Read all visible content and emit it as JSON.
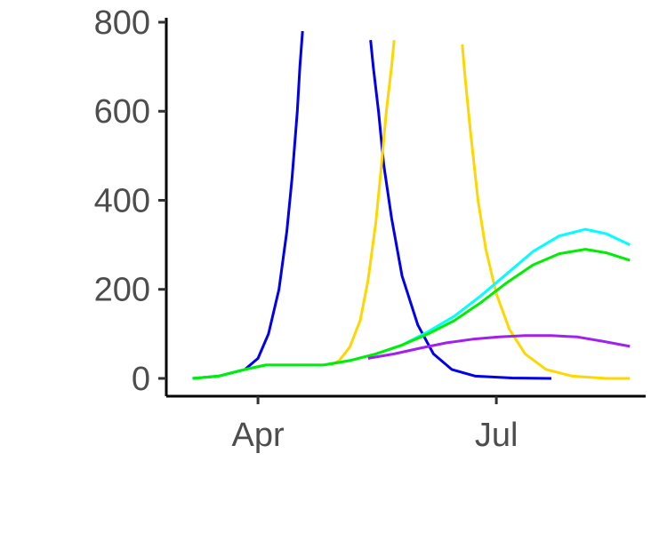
{
  "chart_data": {
    "type": "line",
    "title": "",
    "xlabel": "",
    "ylabel": "",
    "x_axis": {
      "type": "date",
      "range": [
        "2020-02-26",
        "2020-08-27"
      ],
      "ticks": [
        {
          "date": "2020-04-01",
          "label": "Apr"
        },
        {
          "date": "2020-07-01",
          "label": "Jul"
        }
      ]
    },
    "y_axis": {
      "range": [
        -40,
        810
      ],
      "ticks": [
        0,
        200,
        400,
        600,
        800
      ]
    },
    "grid": false,
    "legend": "none",
    "series": [
      {
        "color": "#0000ee",
        "points": [
          [
            "2020-03-07",
            0
          ],
          [
            "2020-03-17",
            5
          ],
          [
            "2020-03-27",
            20
          ],
          [
            "2020-04-01",
            45
          ],
          [
            "2020-04-05",
            100
          ],
          [
            "2020-04-09",
            200
          ],
          [
            "2020-04-12",
            330
          ],
          [
            "2020-04-14",
            450
          ],
          [
            "2020-04-16",
            600
          ],
          [
            "2020-04-17",
            700
          ],
          [
            "2020-04-18",
            780
          ]
        ]
      },
      {
        "color": "#0000ee",
        "points": [
          [
            "2020-05-14",
            760
          ],
          [
            "2020-05-15",
            700
          ],
          [
            "2020-05-17",
            600
          ],
          [
            "2020-05-19",
            480
          ],
          [
            "2020-05-22",
            360
          ],
          [
            "2020-05-26",
            230
          ],
          [
            "2020-06-01",
            120
          ],
          [
            "2020-06-07",
            55
          ],
          [
            "2020-06-14",
            20
          ],
          [
            "2020-06-23",
            5
          ],
          [
            "2020-07-07",
            1
          ],
          [
            "2020-07-22",
            0
          ]
        ]
      },
      {
        "color": "#ffd700",
        "points": [
          [
            "2020-04-29",
            30
          ],
          [
            "2020-05-02",
            40
          ],
          [
            "2020-05-06",
            70
          ],
          [
            "2020-05-10",
            130
          ],
          [
            "2020-05-13",
            220
          ],
          [
            "2020-05-16",
            350
          ],
          [
            "2020-05-18",
            470
          ],
          [
            "2020-05-20",
            600
          ],
          [
            "2020-05-22",
            700
          ],
          [
            "2020-05-23",
            760
          ]
        ]
      },
      {
        "color": "#ffd700",
        "points": [
          [
            "2020-06-18",
            750
          ],
          [
            "2020-06-19",
            680
          ],
          [
            "2020-06-21",
            560
          ],
          [
            "2020-06-24",
            400
          ],
          [
            "2020-06-27",
            290
          ],
          [
            "2020-07-01",
            190
          ],
          [
            "2020-07-06",
            110
          ],
          [
            "2020-07-12",
            55
          ],
          [
            "2020-07-20",
            20
          ],
          [
            "2020-07-30",
            5
          ],
          [
            "2020-08-12",
            0
          ],
          [
            "2020-08-21",
            0
          ]
        ]
      },
      {
        "color": "#00ffff",
        "points": [
          [
            "2020-03-07",
            0
          ],
          [
            "2020-03-17",
            5
          ],
          [
            "2020-03-27",
            20
          ],
          [
            "2020-04-04",
            30
          ],
          [
            "2020-04-15",
            30
          ],
          [
            "2020-04-26",
            30
          ],
          [
            "2020-05-06",
            40
          ],
          [
            "2020-05-16",
            55
          ],
          [
            "2020-05-26",
            75
          ],
          [
            "2020-06-05",
            105
          ],
          [
            "2020-06-15",
            140
          ],
          [
            "2020-06-25",
            185
          ],
          [
            "2020-07-05",
            235
          ],
          [
            "2020-07-15",
            285
          ],
          [
            "2020-07-25",
            320
          ],
          [
            "2020-08-04",
            335
          ],
          [
            "2020-08-12",
            325
          ],
          [
            "2020-08-21",
            300
          ]
        ]
      },
      {
        "color": "#00ee00",
        "points": [
          [
            "2020-03-07",
            0
          ],
          [
            "2020-03-17",
            5
          ],
          [
            "2020-03-27",
            20
          ],
          [
            "2020-04-04",
            30
          ],
          [
            "2020-04-15",
            30
          ],
          [
            "2020-04-26",
            30
          ],
          [
            "2020-05-06",
            40
          ],
          [
            "2020-05-16",
            55
          ],
          [
            "2020-05-26",
            75
          ],
          [
            "2020-06-05",
            100
          ],
          [
            "2020-06-15",
            130
          ],
          [
            "2020-06-25",
            170
          ],
          [
            "2020-07-05",
            215
          ],
          [
            "2020-07-15",
            255
          ],
          [
            "2020-07-25",
            280
          ],
          [
            "2020-08-04",
            290
          ],
          [
            "2020-08-12",
            282
          ],
          [
            "2020-08-21",
            265
          ]
        ]
      },
      {
        "color": "#a020f0",
        "points": [
          [
            "2020-05-13",
            45
          ],
          [
            "2020-05-23",
            55
          ],
          [
            "2020-06-02",
            68
          ],
          [
            "2020-06-12",
            80
          ],
          [
            "2020-06-22",
            88
          ],
          [
            "2020-07-02",
            93
          ],
          [
            "2020-07-12",
            96
          ],
          [
            "2020-07-22",
            96
          ],
          [
            "2020-08-01",
            93
          ],
          [
            "2020-08-11",
            83
          ],
          [
            "2020-08-21",
            72
          ]
        ]
      }
    ]
  }
}
